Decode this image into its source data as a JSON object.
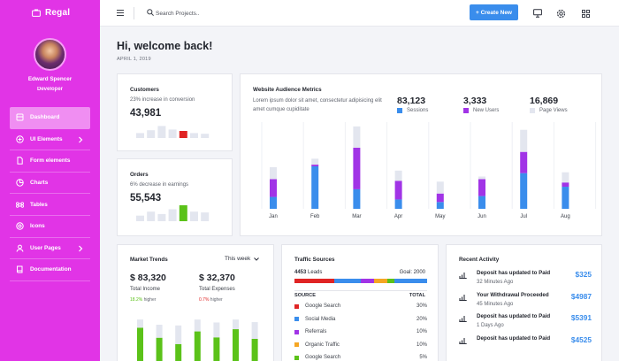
{
  "brand": {
    "name": "Regal"
  },
  "user": {
    "name": "Edward Spencer",
    "role": "Developer"
  },
  "sidebar": {
    "items": [
      {
        "label": "Dashboard",
        "icon": "dashboard-icon",
        "active": true,
        "chevron": false
      },
      {
        "label": "UI Elements",
        "icon": "layers-icon",
        "active": false,
        "chevron": true
      },
      {
        "label": "Form elements",
        "icon": "file-icon",
        "active": false,
        "chevron": false
      },
      {
        "label": "Charts",
        "icon": "pie-chart-icon",
        "active": false,
        "chevron": false
      },
      {
        "label": "Tables",
        "icon": "command-icon",
        "active": false,
        "chevron": false
      },
      {
        "label": "Icons",
        "icon": "life-buoy-icon",
        "active": false,
        "chevron": false
      },
      {
        "label": "User Pages",
        "icon": "user-icon",
        "active": false,
        "chevron": true
      },
      {
        "label": "Documentation",
        "icon": "book-icon",
        "active": false,
        "chevron": false
      }
    ]
  },
  "topbar": {
    "search_placeholder": "Search Projects..",
    "create_label": "+ Create New"
  },
  "header": {
    "title": "Hi, welcome back!",
    "date": "APRIL 1, 2019"
  },
  "customers": {
    "title": "Customers",
    "subtitle": "23% increase in conversion",
    "value": "43,981",
    "bars": [
      0.35,
      0.55,
      0.85,
      0.6,
      0.5,
      0.35,
      0.3
    ],
    "highlight": 4,
    "highlight_color": "#e02424"
  },
  "orders": {
    "title": "Orders",
    "subtitle": "6% decrease in earnings",
    "value": "55,543",
    "bars": [
      0.35,
      0.6,
      0.45,
      0.75,
      1.0,
      0.6,
      0.55
    ],
    "highlight": 4,
    "highlight_color": "#5bc219"
  },
  "website": {
    "title": "Website Audience Metrics",
    "description": "Lorem ipsum dolor sit amet, consectetur adipisicing elit amet cumque cupiditate",
    "stats": [
      {
        "value": "83,123",
        "label": "Sessions",
        "color": "#3a8dec"
      },
      {
        "value": "3,333",
        "label": "New Users",
        "color": "#a134e6"
      },
      {
        "value": "16,869",
        "label": "Page Views",
        "color": "#e3e6ef"
      }
    ]
  },
  "chart_data": {
    "type": "bar",
    "stacked": true,
    "categories": [
      "Jan",
      "Feb",
      "Mar",
      "Apr",
      "May",
      "Jun",
      "Jul",
      "Aug"
    ],
    "series": [
      {
        "name": "Sessions",
        "color": "#3a8dec",
        "values": [
          0.28,
          1.0,
          0.46,
          0.22,
          0.16,
          0.3,
          0.84,
          0.52
        ]
      },
      {
        "name": "New Users",
        "color": "#a134e6",
        "values": [
          0.42,
          0.04,
          0.98,
          0.44,
          0.2,
          0.4,
          0.5,
          0.1
        ]
      },
      {
        "name": "Page Views",
        "color": "#e3e6ef",
        "values": [
          0.28,
          0.14,
          0.5,
          0.24,
          0.28,
          0.06,
          0.52,
          0.24
        ]
      }
    ],
    "grid": "vertical"
  },
  "market": {
    "title": "Market Trends",
    "period": "This week",
    "income_value": "$ 83,320",
    "income_label": "Total Income",
    "income_delta": "18.2%",
    "income_delta_text": "higher",
    "expense_value": "$ 32,370",
    "expense_label": "Total Expenses",
    "expense_delta": "0.7%",
    "expense_delta_text": "higher",
    "bars": [
      {
        "green": 0.92,
        "gray": 0.22
      },
      {
        "green": 0.65,
        "gray": 0.35
      },
      {
        "green": 0.48,
        "gray": 0.5
      },
      {
        "green": 0.82,
        "gray": 0.32
      },
      {
        "green": 0.66,
        "gray": 0.4
      },
      {
        "green": 0.88,
        "gray": 0.26
      },
      {
        "green": 0.62,
        "gray": 0.45
      }
    ]
  },
  "traffic": {
    "title": "Traffic Sources",
    "leads_value": "4453",
    "leads_label": "Leads",
    "goal": "Goal: 2000",
    "col_source": "SOURCE",
    "col_total": "TOTAL",
    "progress": [
      {
        "color": "#e02424",
        "value": 30
      },
      {
        "color": "#3a8dec",
        "value": 20
      },
      {
        "color": "#a134e6",
        "value": 10
      },
      {
        "color": "#f5a623",
        "value": 10
      },
      {
        "color": "#5bc219",
        "value": 5
      },
      {
        "color": "#3a8dec",
        "value": 25
      }
    ],
    "rows": [
      {
        "source": "Google Search",
        "total": "30%",
        "color": "#e02424"
      },
      {
        "source": "Social Media",
        "total": "20%",
        "color": "#3a8dec"
      },
      {
        "source": "Referrals",
        "total": "10%",
        "color": "#a134e6"
      },
      {
        "source": "Organic Traffic",
        "total": "10%",
        "color": "#f5a623"
      },
      {
        "source": "Google Search",
        "total": "5%",
        "color": "#5bc219"
      }
    ]
  },
  "activity": {
    "title": "Recent Activity",
    "items": [
      {
        "title": "Deposit has updated to Paid",
        "time": "32 Minutes Ago",
        "amount": "$325"
      },
      {
        "title": "Your Withdrawal Proceeded",
        "time": "45 Minutes Ago",
        "amount": "$4987"
      },
      {
        "title": "Deposit has updated to Paid",
        "time": "1 Days Ago",
        "amount": "$5391"
      },
      {
        "title": "Deposit has updated to Paid",
        "time": "",
        "amount": "$4525"
      }
    ]
  }
}
